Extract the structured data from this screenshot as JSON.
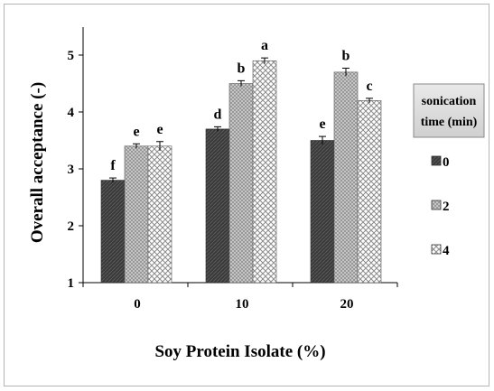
{
  "chart_data": {
    "type": "bar",
    "title": "",
    "xlabel": "Soy Protein Isolate (%)",
    "ylabel": "Overall acceptance (-)",
    "ylim": [
      1,
      5.5
    ],
    "yticks": [
      "1",
      "2",
      "3",
      "4",
      "5"
    ],
    "categories": [
      "0",
      "10",
      "20"
    ],
    "legend_title": "sonication time (min)",
    "legend_position": "right",
    "grid": false,
    "series": [
      {
        "name": "0",
        "values": [
          2.8,
          3.7,
          3.5
        ],
        "errors": [
          0.04,
          0.04,
          0.07
        ],
        "labels": [
          "f",
          "d",
          "e"
        ],
        "color": "#404040"
      },
      {
        "name": "2",
        "values": [
          3.4,
          4.5,
          4.7
        ],
        "errors": [
          0.04,
          0.05,
          0.07
        ],
        "labels": [
          "e",
          "b",
          "b"
        ],
        "color": "#9a9a9a"
      },
      {
        "name": "4",
        "values": [
          3.4,
          4.9,
          4.2
        ],
        "errors": [
          0.08,
          0.05,
          0.04
        ],
        "labels": [
          "e",
          "a",
          "c"
        ],
        "color": "#e6e6e6"
      }
    ]
  }
}
